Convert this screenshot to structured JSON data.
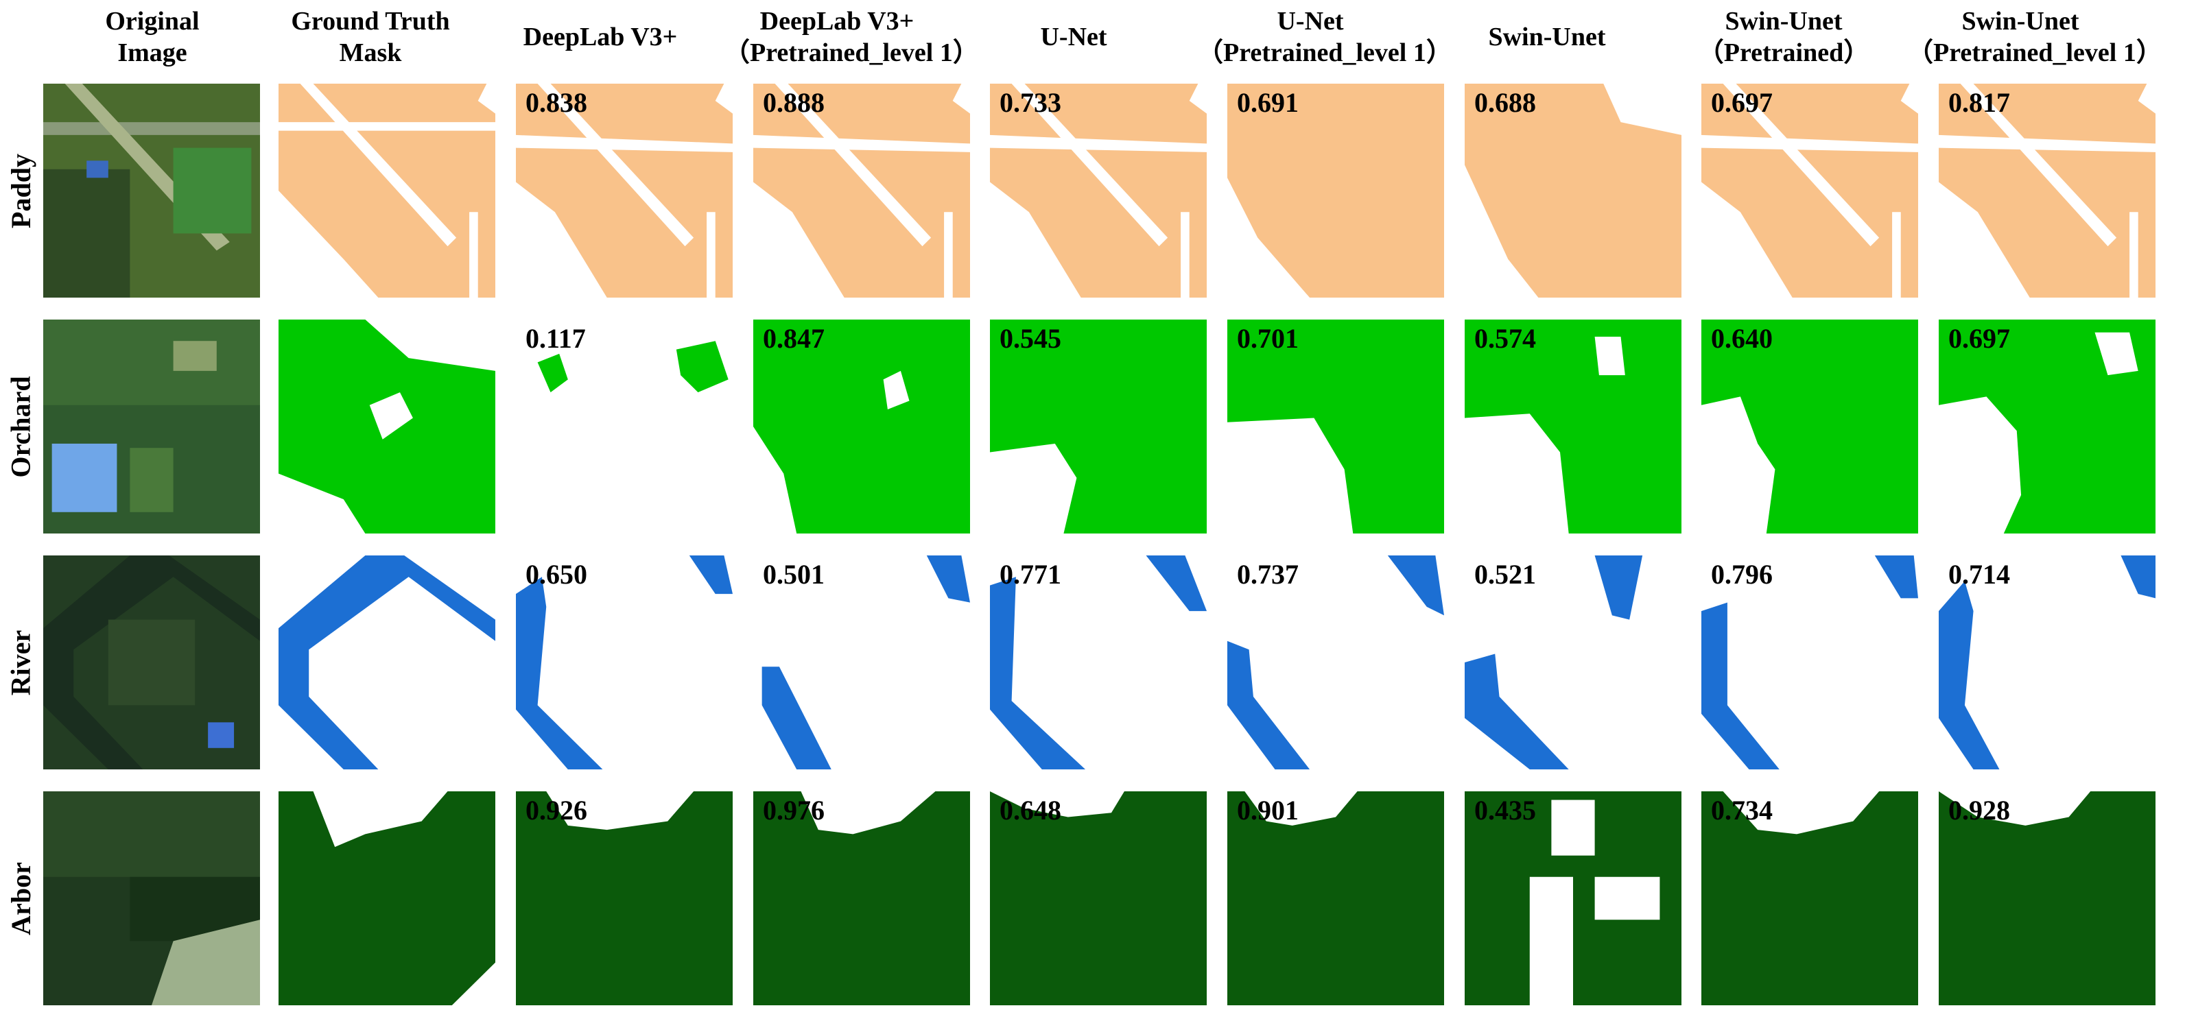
{
  "columns": [
    {
      "title": "Original",
      "subtitle": "Image"
    },
    {
      "title": "Ground Truth",
      "subtitle": "Mask"
    },
    {
      "title": "DeepLab V3+",
      "subtitle": ""
    },
    {
      "title": "DeepLab V3+",
      "subtitle": "（Pretrained_level 1）"
    },
    {
      "title": "U-Net",
      "subtitle": ""
    },
    {
      "title": "U-Net",
      "subtitle": "（Pretrained_level 1）"
    },
    {
      "title": "Swin-Unet",
      "subtitle": ""
    },
    {
      "title": "Swin-Unet",
      "subtitle": "（Pretrained）"
    },
    {
      "title": "Swin-Unet",
      "subtitle": "（Pretrained_level 1）"
    }
  ],
  "rows": [
    {
      "label": "Paddy",
      "color": "#F9C28A",
      "scores": [
        "0.838",
        "0.888",
        "0.733",
        "0.691",
        "0.688",
        "0.697",
        "0.817"
      ]
    },
    {
      "label": "Orchard",
      "color": "#00C800",
      "scores": [
        "0.117",
        "0.847",
        "0.545",
        "0.701",
        "0.574",
        "0.640",
        "0.697"
      ]
    },
    {
      "label": "River",
      "color": "#1C6FD3",
      "scores": [
        "0.650",
        "0.501",
        "0.771",
        "0.737",
        "0.521",
        "0.796",
        "0.714"
      ]
    },
    {
      "label": "Arbor",
      "color": "#0B5A0B",
      "scores": [
        "0.926",
        "0.976",
        "0.648",
        "0.901",
        "0.435",
        "0.734",
        "0.928"
      ]
    }
  ]
}
